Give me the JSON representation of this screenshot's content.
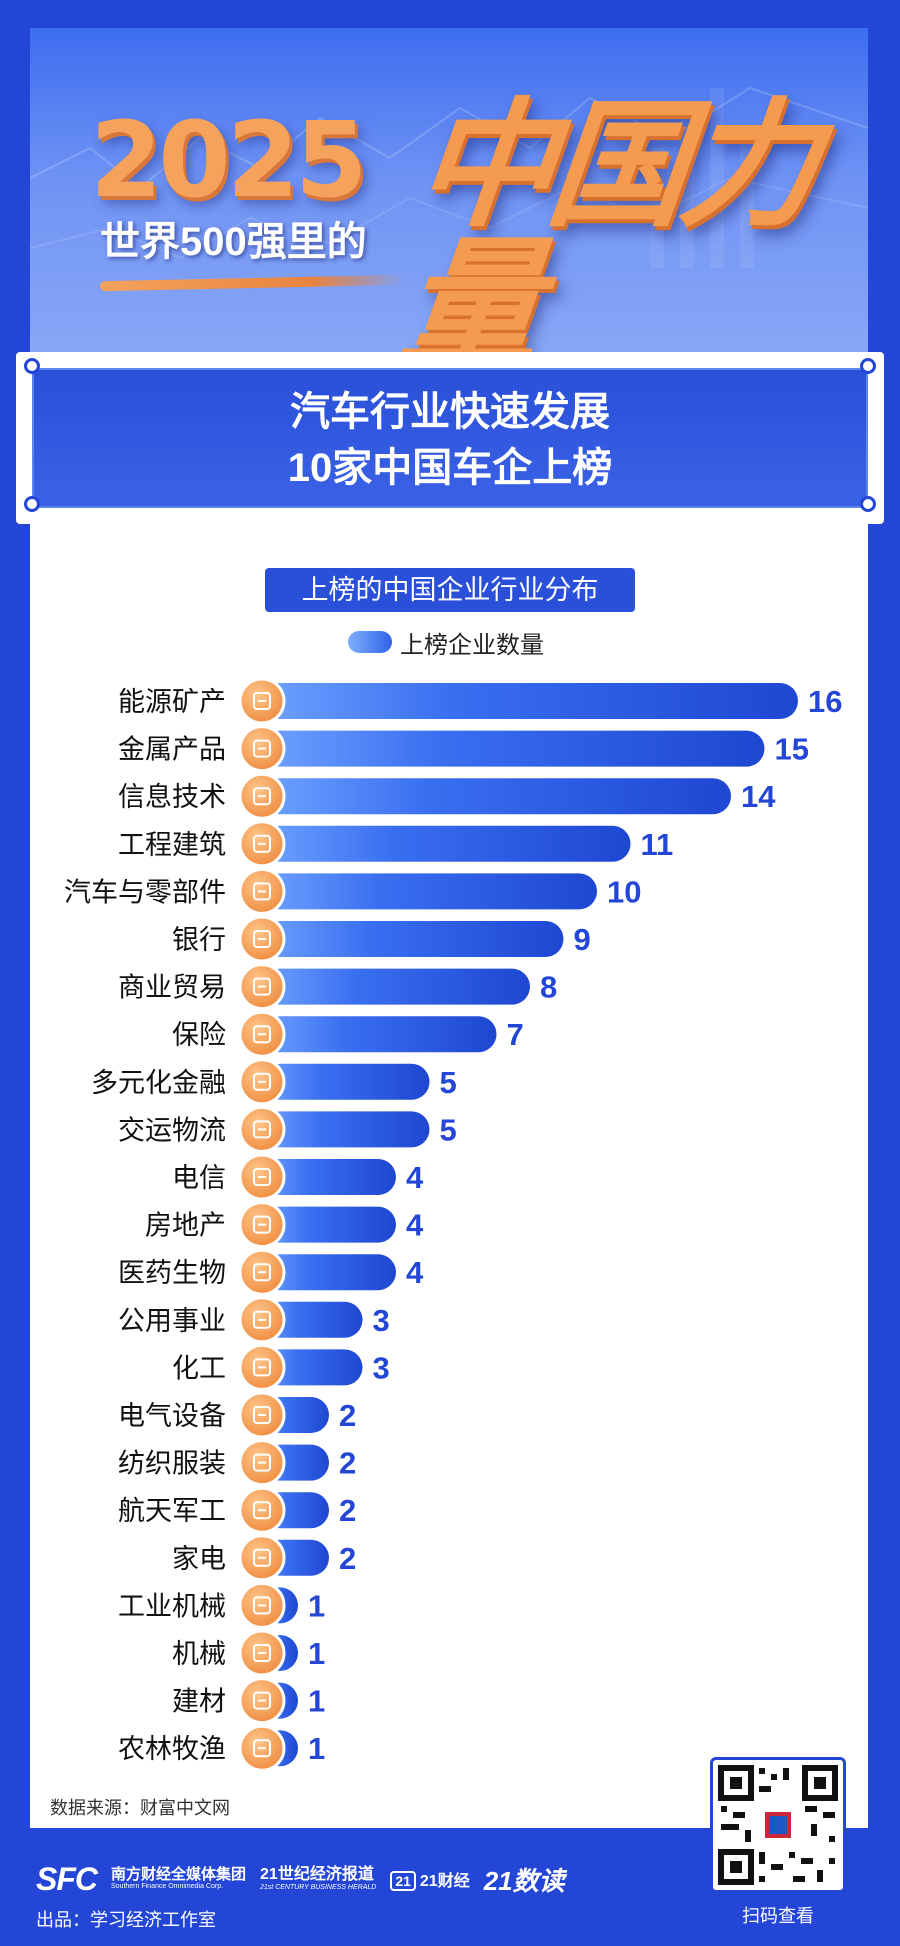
{
  "header": {
    "year": "2025",
    "subline": "世界500强里的",
    "big_title": "中国力量"
  },
  "banner": {
    "line1": "汽车行业快速发展",
    "line2": "10家中国车企上榜"
  },
  "chart_data": {
    "type": "bar",
    "orientation": "horizontal",
    "title": "上榜的中国企业行业分布",
    "legend": [
      "上榜企业数量"
    ],
    "legend_placement": "top",
    "grid": false,
    "xlim": [
      0,
      16
    ],
    "categories": [
      "能源矿产",
      "金属产品",
      "信息技术",
      "工程建筑",
      "汽车与零部件",
      "银行",
      "商业贸易",
      "保险",
      "多元化金融",
      "交运物流",
      "电信",
      "房地产",
      "医药生物",
      "公用事业",
      "化工",
      "电气设备",
      "纺织服装",
      "航天军工",
      "家电",
      "工业机械",
      "机械",
      "建材",
      "农林牧渔"
    ],
    "values": [
      16,
      15,
      14,
      11,
      10,
      9,
      8,
      7,
      5,
      5,
      4,
      4,
      4,
      3,
      3,
      2,
      2,
      2,
      2,
      1,
      1,
      1,
      1
    ],
    "series": [
      {
        "name": "上榜企业数量",
        "values": [
          16,
          15,
          14,
          11,
          10,
          9,
          8,
          7,
          5,
          5,
          4,
          4,
          4,
          3,
          3,
          2,
          2,
          2,
          2,
          1,
          1,
          1,
          1
        ]
      }
    ],
    "icons": [
      "oil-pump-icon",
      "steel-bar-icon",
      "computer-monitor-icon",
      "building-icon",
      "car-icon",
      "bank-icon",
      "trade-icon",
      "shield-check-icon",
      "coin-stack-icon",
      "rocket-icon",
      "truck-icon",
      "house-document-icon",
      "dna-icon",
      "signal-tower-icon",
      "factory-icon",
      "circular-arrows-icon",
      "tshirt-icon",
      "robot-arm-icon",
      "washing-machine-icon",
      "fire-extinguisher-icon",
      "gear-icon",
      "bricks-icon",
      "tree-icon"
    ],
    "colors": {
      "bar_start": "#2f62e6",
      "bar_end": "#1e47d2",
      "value_text": "#2346d6",
      "icon_bg": "#f5a05a"
    }
  },
  "source": "数据来源：财富中文网",
  "footer": {
    "logo_sfc": "SFC",
    "logo_sfc_cn": "南方财经全媒体集团",
    "logo_sfc_en": "Southern Finance Omnimedia Corp.",
    "logo_21c_cn": "21世纪经济报道",
    "logo_21c_en": "21st CENTURY BUSINESS HERALD",
    "logo_21cj_box": "21",
    "logo_21cj": "21财经",
    "logo_shudu": "21数读",
    "producer": "出品：学习经济工作室",
    "qr_caption": "扫码查看"
  }
}
